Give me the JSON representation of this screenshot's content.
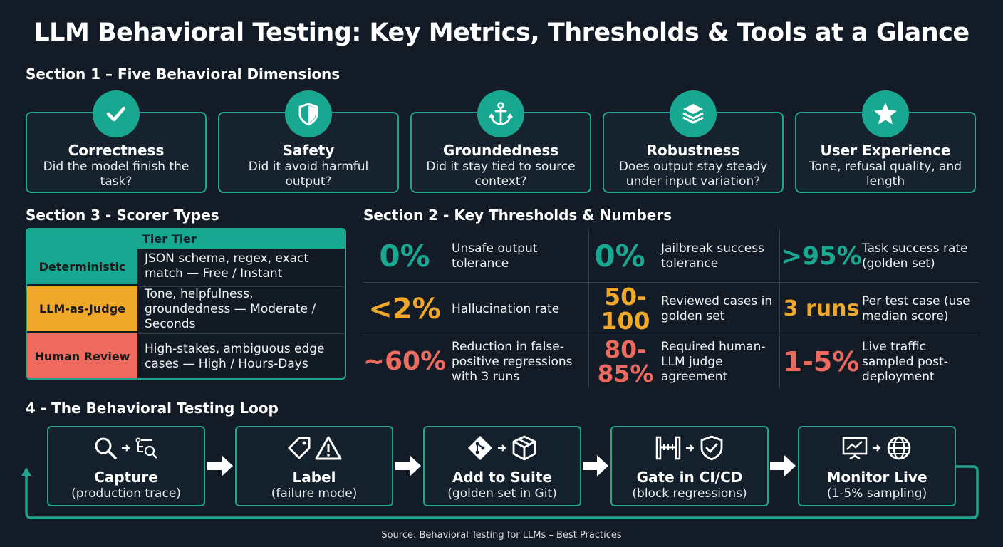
{
  "title": "LLM Behavioral Testing: Key Metrics, Thresholds & Tools at a Glance",
  "colors": {
    "teal": "#18a892",
    "orange": "#f0a82a",
    "red": "#ef6a5e",
    "background": "#131c26"
  },
  "section1": {
    "heading": "Section 1 – Five Behavioral Dimensions",
    "cards": [
      {
        "icon": "checkmark-icon",
        "title": "Correctness",
        "desc": "Did the model finish the task?"
      },
      {
        "icon": "shield-icon",
        "title": "Safety",
        "desc": "Did it avoid harmful output?"
      },
      {
        "icon": "anchor-icon",
        "title": "Groundedness",
        "desc": "Did it stay tied to source context?"
      },
      {
        "icon": "layers-icon",
        "title": "Robustness",
        "desc": "Does output stay steady under input variation?"
      },
      {
        "icon": "star-icon",
        "title": "User Experience",
        "desc": "Tone, refusal quality, and length"
      }
    ]
  },
  "section3": {
    "heading": "Section 3 - Scorer Types",
    "header": "Tier Tier",
    "rows": [
      {
        "label": "Deterministic",
        "desc": "JSON schema, regex, exact match — Free / Instant",
        "color": "#18a892"
      },
      {
        "label": "LLM-as-Judge",
        "desc": "Tone, helpfulness, groundedness — Moderate / Seconds",
        "color": "#f0a82a"
      },
      {
        "label": "Human Review",
        "desc": "High-stakes, ambiguous edge cases — High / Hours-Days",
        "color": "#ef6a5e"
      }
    ]
  },
  "section2": {
    "heading": "Section 2 - Key Thresholds & Numbers",
    "cells": [
      {
        "value": "0%",
        "label": "Unsafe output tolerance",
        "color": "#18a892"
      },
      {
        "value": "0%",
        "label": "Jailbreak success tolerance",
        "color": "#18a892"
      },
      {
        "value": ">95%",
        "label": "Task success rate (golden set)",
        "color": "#18a892"
      },
      {
        "value": "<2%",
        "label": "Hallucination rate",
        "color": "#f0a82a"
      },
      {
        "value": "50-100",
        "label": "Reviewed cases in golden set",
        "color": "#f0a82a"
      },
      {
        "value": "3 runs",
        "label": "Per test case (use median score)",
        "color": "#f0a82a"
      },
      {
        "value": "~60%",
        "label": "Reduction in false-positive regressions with 3 runs",
        "color": "#ef6a5e"
      },
      {
        "value": "80-85%",
        "label": "Required human-LLM judge agreement",
        "color": "#ef6a5e"
      },
      {
        "value": "1-5%",
        "label": "Live traffic sampled post-deployment",
        "color": "#ef6a5e"
      }
    ]
  },
  "section4": {
    "heading": "4 - The Behavioral Testing Loop",
    "steps": [
      {
        "icons": [
          "search-icon",
          "arrow-right-icon",
          "trace-search-icon"
        ],
        "title": "Capture",
        "sub": "(production trace)"
      },
      {
        "icons": [
          "tag-icon",
          "warning-icon"
        ],
        "title": "Label",
        "sub": "(failure mode)"
      },
      {
        "icons": [
          "git-icon",
          "arrow-right-icon",
          "box-icon"
        ],
        "title": "Add to Suite",
        "sub": "(golden set in Git)"
      },
      {
        "icons": [
          "gate-icon",
          "arrow-right-icon",
          "shield-check-icon"
        ],
        "title": "Gate in CI/CD",
        "sub": "(block regressions)"
      },
      {
        "icons": [
          "monitor-chart-icon",
          "arrow-right-icon",
          "globe-icon"
        ],
        "title": "Monitor Live",
        "sub": "(1-5% sampling)"
      }
    ]
  },
  "source": "Source: Behavioral Testing for LLMs – Best Practices"
}
